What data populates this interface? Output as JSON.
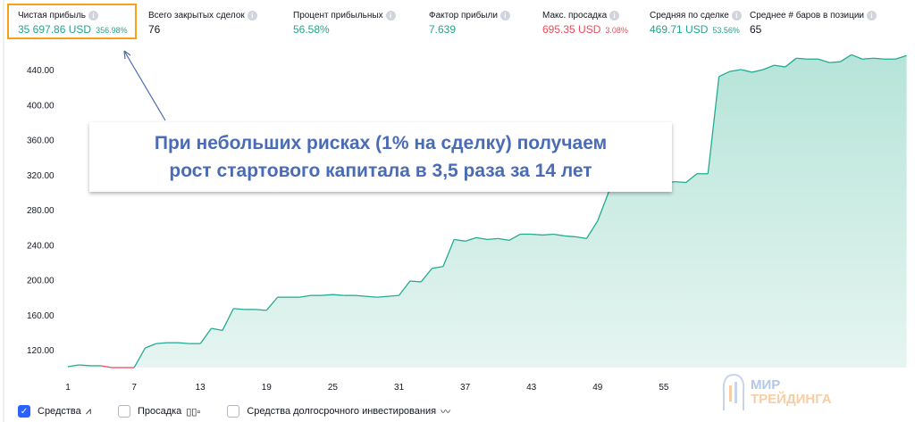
{
  "stats": [
    {
      "label": "Чистая прибыль",
      "value": "35 697.86 USD",
      "pct": "356.98%",
      "color": "green",
      "highlighted": true
    },
    {
      "label": "Всего закрытых сделок",
      "value": "76",
      "pct": "",
      "color": "dark"
    },
    {
      "label": "Процент прибыльных",
      "value": "56.58%",
      "pct": "",
      "color": "green"
    },
    {
      "label": "Фактор прибыли",
      "value": "7.639",
      "pct": "",
      "color": "green"
    },
    {
      "label": "Макс. просадка",
      "value": "695.35 USD",
      "pct": "3.08%",
      "color": "red"
    },
    {
      "label": "Средняя по сделке",
      "value": "469.71 USD",
      "pct": "53.56%",
      "color": "green"
    },
    {
      "label": "Среднее # баров в позиции",
      "value": "65",
      "pct": "",
      "color": "dark"
    }
  ],
  "annotation": {
    "line1": "При небольших рисках (1% на сделку) получаем",
    "line2": "рост стартового капитала в 3,5 раза за 14 лет"
  },
  "legend": [
    {
      "label": "Средства",
      "checked": true,
      "icon": "equity-line-icon"
    },
    {
      "label": "Просадка",
      "checked": false,
      "icon": "drawdown-bars-icon"
    },
    {
      "label": "Средства долгосрочного инвестирования",
      "checked": false,
      "icon": "buy-hold-line-icon"
    }
  ],
  "logo": {
    "line1": "МИР",
    "line2": "ТРЕЙДИНГА"
  },
  "colors": {
    "line": "#22ab94",
    "fill": "#c8ebe2",
    "drawdown": "#f04a5a",
    "highlight": "#f7a11a",
    "annotation": "#4a6bb5"
  },
  "chart_data": {
    "type": "area",
    "x_ticks": [
      "1",
      "7",
      "13",
      "19",
      "25",
      "31",
      "37",
      "43",
      "49",
      "55"
    ],
    "y_ticks": [
      "120.00",
      "160.00",
      "200.00",
      "240.00",
      "280.00",
      "320.00",
      "360.00",
      "400.00",
      "440.00"
    ],
    "ylim": [
      100,
      460
    ],
    "x_start": 1,
    "values": [
      100.6,
      102.7,
      101.7,
      101.7,
      99.6,
      99.6,
      99.6,
      122,
      127,
      128,
      128,
      127,
      127,
      144.5,
      142,
      167,
      166,
      166,
      165,
      180,
      180,
      180,
      182,
      182,
      183,
      182,
      182,
      181,
      180,
      181,
      182,
      198.5,
      197.5,
      213,
      215,
      246,
      244,
      248,
      246,
      247,
      245,
      252,
      252,
      251,
      252,
      250,
      249,
      247,
      267,
      300,
      308,
      310,
      312,
      311,
      310,
      312,
      311,
      321,
      321,
      432,
      438,
      440,
      437,
      440,
      445,
      443,
      453,
      452,
      452,
      448,
      449,
      457,
      452,
      453,
      452,
      452,
      456
    ],
    "drawdown_range": [
      4,
      8
    ]
  }
}
